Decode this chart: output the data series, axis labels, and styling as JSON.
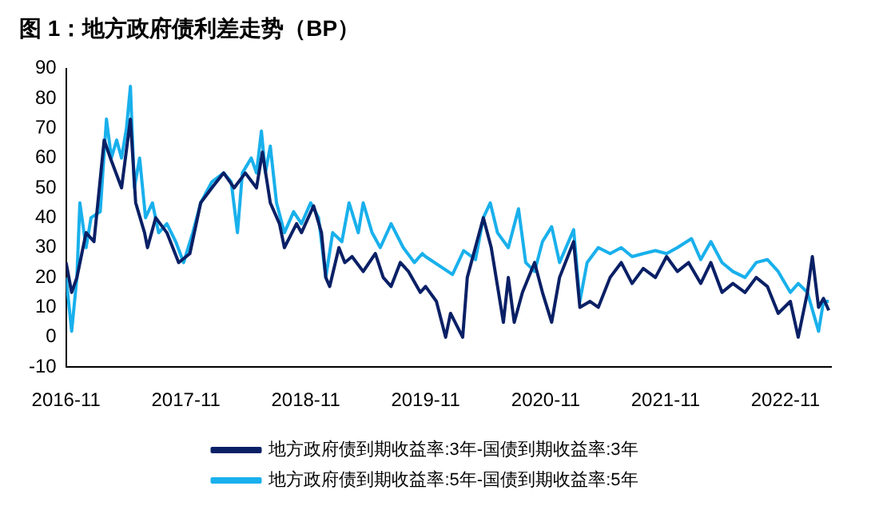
{
  "chart_data": {
    "type": "line",
    "title": "图 1：地方政府债利差走势（BP）",
    "xlim": [
      "2016-11-01",
      "2023-03-20"
    ],
    "xticks": [
      {
        "value": "2016-11-01",
        "label": "2016-11"
      },
      {
        "value": "2017-11-01",
        "label": "2017-11"
      },
      {
        "value": "2018-11-01",
        "label": "2018-11"
      },
      {
        "value": "2019-11-01",
        "label": "2019-11"
      },
      {
        "value": "2020-11-01",
        "label": "2020-11"
      },
      {
        "value": "2021-11-01",
        "label": "2021-11"
      },
      {
        "value": "2022-11-01",
        "label": "2022-11"
      }
    ],
    "ylim": [
      -10,
      90
    ],
    "yticks": [
      -10,
      0,
      10,
      20,
      30,
      40,
      50,
      60,
      70,
      80,
      90
    ],
    "grid": false,
    "legend": "bottom",
    "marker": "none",
    "line_style": "solid",
    "series": [
      {
        "name": "地方政府债到期收益率:3年-国债到期收益率:3年",
        "color": "#0a2066",
        "x": [
          "2016-11-01",
          "2016-11-18",
          "2016-12-04",
          "2017-01-01",
          "2017-01-25",
          "2017-02-25",
          "2017-03-16",
          "2017-04-19",
          "2017-05-16",
          "2017-06-01",
          "2017-06-28",
          "2017-07-07",
          "2017-08-01",
          "2017-09-04",
          "2017-10-10",
          "2017-11-13",
          "2017-12-16",
          "2018-01-19",
          "2018-02-24",
          "2018-03-28",
          "2018-05-01",
          "2018-06-04",
          "2018-06-22",
          "2018-07-16",
          "2018-08-13",
          "2018-08-28",
          "2018-10-04",
          "2018-10-19",
          "2018-11-25",
          "2018-12-19",
          "2019-01-01",
          "2019-01-13",
          "2019-02-10",
          "2019-02-28",
          "2019-03-22",
          "2019-04-25",
          "2019-06-01",
          "2019-06-25",
          "2019-07-19",
          "2019-08-16",
          "2019-09-10",
          "2019-10-16",
          "2019-11-01",
          "2019-12-04",
          "2020-01-01",
          "2020-01-16",
          "2020-02-22",
          "2020-03-07",
          "2020-04-25",
          "2020-05-19",
          "2020-06-25",
          "2020-07-10",
          "2020-07-28",
          "2020-08-22",
          "2020-09-28",
          "2020-10-22",
          "2020-11-19",
          "2020-12-13",
          "2021-01-25",
          "2021-02-13",
          "2021-03-16",
          "2021-04-10",
          "2021-05-16",
          "2021-06-19",
          "2021-07-22",
          "2021-08-25",
          "2021-10-01",
          "2021-11-04",
          "2021-12-07",
          "2022-01-10",
          "2022-02-16",
          "2022-03-19",
          "2022-04-22",
          "2022-05-25",
          "2022-07-01",
          "2022-08-04",
          "2022-09-07",
          "2022-10-10",
          "2022-11-16",
          "2022-12-10",
          "2023-01-07",
          "2023-01-22",
          "2023-02-10",
          "2023-02-25",
          "2023-03-13"
        ],
        "values": [
          25,
          15,
          20,
          35,
          32,
          66,
          60,
          50,
          73,
          45,
          35,
          30,
          40,
          35,
          25,
          28,
          45,
          50,
          55,
          50,
          55,
          50,
          62,
          45,
          38,
          30,
          38,
          35,
          44,
          35,
          20,
          17,
          30,
          25,
          27,
          22,
          28,
          20,
          17,
          25,
          22,
          15,
          17,
          12,
          0,
          8,
          0,
          20,
          40,
          30,
          5,
          20,
          5,
          15,
          25,
          15,
          5,
          20,
          32,
          10,
          12,
          10,
          20,
          25,
          18,
          23,
          20,
          27,
          22,
          25,
          18,
          25,
          15,
          18,
          15,
          20,
          17,
          8,
          12,
          0,
          15,
          27,
          10,
          13,
          9
        ]
      },
      {
        "name": "地方政府债到期收益率:5年-国债到期收益率:5年",
        "color": "#19b0ec",
        "x": [
          "2016-11-01",
          "2016-11-18",
          "2016-12-04",
          "2016-12-13",
          "2017-01-01",
          "2017-01-16",
          "2017-02-13",
          "2017-03-04",
          "2017-03-19",
          "2017-04-04",
          "2017-04-19",
          "2017-05-04",
          "2017-05-16",
          "2017-05-28",
          "2017-06-13",
          "2017-07-01",
          "2017-07-22",
          "2017-08-10",
          "2017-09-04",
          "2017-10-01",
          "2017-10-25",
          "2017-11-22",
          "2017-12-16",
          "2018-01-19",
          "2018-02-24",
          "2018-03-19",
          "2018-04-07",
          "2018-04-22",
          "2018-05-19",
          "2018-06-04",
          "2018-06-19",
          "2018-07-01",
          "2018-07-16",
          "2018-08-04",
          "2018-08-28",
          "2018-09-25",
          "2018-10-19",
          "2018-11-16",
          "2018-12-10",
          "2019-01-01",
          "2019-01-22",
          "2019-02-19",
          "2019-03-13",
          "2019-04-10",
          "2019-04-25",
          "2019-05-22",
          "2019-06-16",
          "2019-07-19",
          "2019-08-25",
          "2019-09-28",
          "2019-10-22",
          "2019-11-01",
          "2020-01-22",
          "2020-02-25",
          "2020-04-01",
          "2020-04-25",
          "2020-05-16",
          "2020-06-07",
          "2020-07-10",
          "2020-08-10",
          "2020-09-01",
          "2020-09-28",
          "2020-10-22",
          "2020-11-19",
          "2020-12-13",
          "2021-01-25",
          "2021-02-13",
          "2021-03-07",
          "2021-04-10",
          "2021-05-16",
          "2021-06-19",
          "2021-07-22",
          "2021-08-25",
          "2021-10-01",
          "2021-11-04",
          "2021-12-07",
          "2022-01-19",
          "2022-02-16",
          "2022-03-19",
          "2022-04-22",
          "2022-05-25",
          "2022-07-01",
          "2022-08-04",
          "2022-09-07",
          "2022-10-10",
          "2022-11-16",
          "2022-12-10",
          "2023-01-07",
          "2023-02-10",
          "2023-02-25",
          "2023-03-13"
        ],
        "values": [
          20,
          2,
          20,
          45,
          30,
          40,
          42,
          73,
          60,
          66,
          60,
          70,
          84,
          50,
          60,
          40,
          45,
          35,
          38,
          32,
          25,
          35,
          45,
          52,
          55,
          52,
          35,
          55,
          60,
          55,
          69,
          55,
          64,
          45,
          35,
          42,
          38,
          45,
          40,
          20,
          35,
          32,
          45,
          35,
          45,
          35,
          30,
          38,
          30,
          25,
          28,
          27,
          21,
          29,
          26,
          40,
          45,
          35,
          30,
          43,
          25,
          22,
          32,
          37,
          25,
          36,
          12,
          25,
          30,
          28,
          30,
          27,
          28,
          29,
          28,
          30,
          33,
          26,
          32,
          25,
          22,
          20,
          25,
          26,
          22,
          15,
          18,
          15,
          2,
          12,
          12
        ]
      }
    ]
  }
}
